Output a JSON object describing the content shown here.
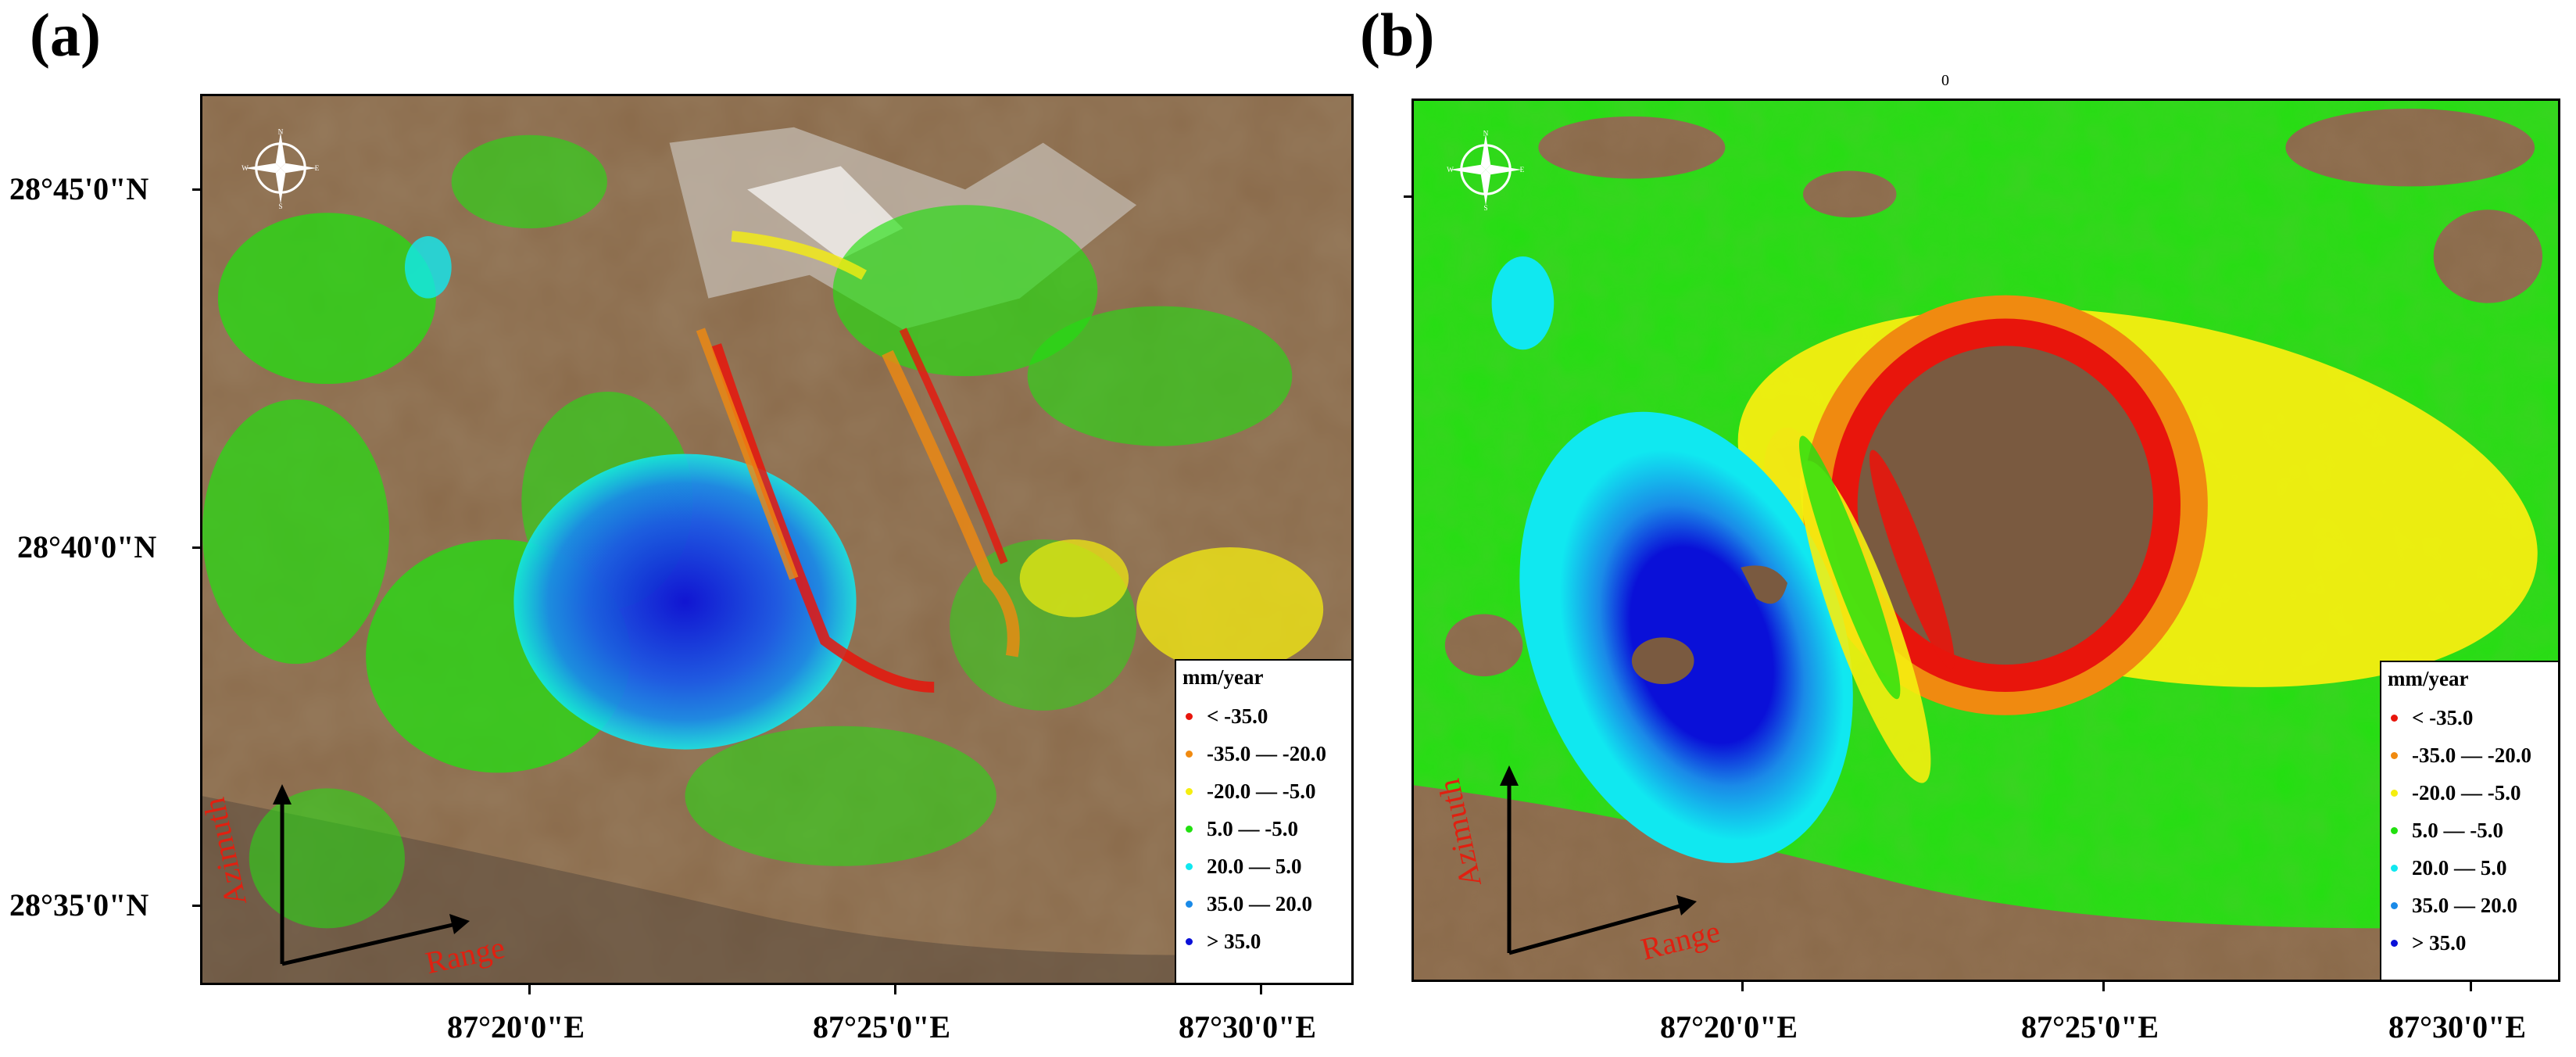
{
  "panels": [
    {
      "label": "(a)",
      "lat_ticks": [
        "28°45'0\"N",
        "28°40'0\"N",
        "28°35'0\"N"
      ],
      "lon_ticks": [
        "87°20'0\"E",
        "87°25'0\"E",
        "87°30'0\"E"
      ],
      "legend": {
        "title": "mm/year",
        "items": [
          {
            "label": "< -35.0",
            "color": "#e8150c"
          },
          {
            "label": "-35.0 — -20.0",
            "color": "#f08a10"
          },
          {
            "label": "-20.0 — -5.0",
            "color": "#f5ee10"
          },
          {
            "label": "5.0 — -5.0",
            "color": "#22e010"
          },
          {
            "label": "20.0 — 5.0",
            "color": "#10e8f0"
          },
          {
            "label": "35.0 — 20.0",
            "color": "#1a8ae8"
          },
          {
            "label": "> 35.0",
            "color": "#0a10d8"
          }
        ]
      },
      "azimuth_label": "Azimuth",
      "range_label": "Range"
    },
    {
      "label": "(b)",
      "lat_ticks": [],
      "lon_ticks": [
        "87°20'0\"E",
        "87°25'0\"E",
        "87°30'0\"E"
      ],
      "top_mark": "0",
      "legend": {
        "title": "mm/year",
        "items": [
          {
            "label": "< -35.0",
            "color": "#e8150c"
          },
          {
            "label": "-35.0 — -20.0",
            "color": "#f08a10"
          },
          {
            "label": "-20.0 — -5.0",
            "color": "#f5ee10"
          },
          {
            "label": "5.0 — -5.0",
            "color": "#22e010"
          },
          {
            "label": "20.0 — 5.0",
            "color": "#10e8f0"
          },
          {
            "label": "35.0 — 20.0",
            "color": "#1a8ae8"
          },
          {
            "label": "> 35.0",
            "color": "#0a10d8"
          }
        ]
      },
      "azimuth_label": "Azimuth",
      "range_label": "Range"
    }
  ],
  "compass_letters": {
    "n": "N",
    "s": "S",
    "e": "E",
    "w": "W"
  }
}
